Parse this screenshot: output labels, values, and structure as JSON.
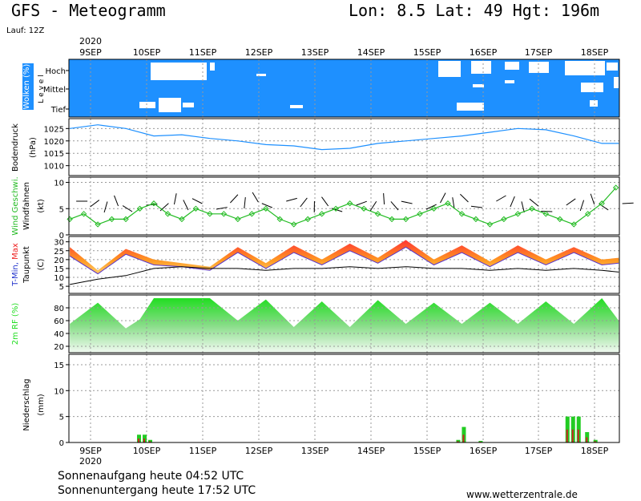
{
  "header": {
    "title": "GFS - Meteogramm",
    "location": "Lon: 8.5  Lat: 49  Hgt: 196m",
    "run": "Lauf: 12Z"
  },
  "footer": {
    "sunrise": "Sonnenaufgang heute 04:52 UTC",
    "sunset": "Sonnenuntergang heute 17:52 UTC",
    "site": "www.wetterzentrale.de"
  },
  "colors": {
    "cloud_blue": "#1e90ff",
    "pressure_line": "#1e90ff",
    "wind_speed": "#22bb22",
    "temp_min_label": "#2233cc",
    "temp_max_label": "#ee2222",
    "rh_fill": "#22dd22",
    "precip_green": "#22cc22",
    "precip_red": "#cc2222"
  },
  "chart_data": [
    {
      "type": "heatmap",
      "name_label": "Wolken (%)",
      "ylabel": "L e v e l",
      "levels": [
        "Hoch",
        "Mittel",
        "Tief"
      ],
      "x_dates": [
        "9SEP",
        "10SEP",
        "11SEP",
        "12SEP",
        "13SEP",
        "14SEP",
        "15SEP",
        "16SEP",
        "17SEP",
        "18SEP"
      ],
      "year": "2020",
      "note": "mostly clear (blue) with scattered clouds (white)"
    },
    {
      "type": "line",
      "ylabel": "Bodendruck (hPa)",
      "yticks": [
        1010,
        1015,
        1020,
        1025
      ],
      "ylim": [
        1006,
        1029
      ],
      "x": [
        0,
        0.5,
        1,
        1.5,
        2,
        2.5,
        3,
        3.5,
        4,
        4.5,
        5,
        5.5,
        6,
        6.5,
        7,
        7.5,
        8,
        8.5,
        9,
        9.5,
        9.8
      ],
      "values": [
        1025,
        1026.5,
        1025,
        1022,
        1022.5,
        1021,
        1020,
        1018.5,
        1018,
        1016.5,
        1017,
        1019,
        1020,
        1021,
        1022,
        1023.5,
        1025,
        1024.5,
        1022,
        1019,
        1019
      ]
    },
    {
      "type": "line",
      "series_labels": [
        "Wind Geschwi.",
        "Windfahnen"
      ],
      "ylabel": "(kt)",
      "yticks": [
        0,
        5,
        10
      ],
      "ylim": [
        0,
        11
      ],
      "x": [
        0,
        0.25,
        0.5,
        0.75,
        1,
        1.25,
        1.5,
        1.75,
        2,
        2.25,
        2.5,
        2.75,
        3,
        3.25,
        3.5,
        3.75,
        4,
        4.25,
        4.5,
        4.75,
        5,
        5.25,
        5.5,
        5.75,
        6,
        6.25,
        6.5,
        6.75,
        7,
        7.25,
        7.5,
        7.75,
        8,
        8.25,
        8.5,
        8.75,
        9,
        9.25,
        9.5,
        9.75
      ],
      "values": [
        3,
        4,
        2,
        3,
        3,
        5,
        6,
        4,
        3,
        5,
        4,
        4,
        3,
        4,
        5,
        3,
        2,
        3,
        4,
        5,
        6,
        5,
        4,
        3,
        3,
        4,
        5,
        6,
        4,
        3,
        2,
        3,
        4,
        5,
        4,
        3,
        2,
        4,
        6,
        9
      ]
    },
    {
      "type": "area",
      "series_labels": [
        "T-Min,",
        "Max"
      ],
      "secondary_label": "Taupunkt",
      "ylabel": "(C)",
      "yticks": [
        5,
        10,
        15,
        20,
        25,
        30
      ],
      "ylim": [
        1,
        33
      ],
      "x": [
        0,
        0.5,
        1,
        1.5,
        2,
        2.5,
        3,
        3.5,
        4,
        4.5,
        5,
        5.5,
        6,
        6.5,
        7,
        7.5,
        8,
        8.5,
        9,
        9.5,
        9.8
      ],
      "tmax": [
        27,
        14,
        26,
        20,
        18,
        16,
        27,
        18,
        28,
        20,
        29,
        21,
        31,
        20,
        28,
        19,
        28,
        20,
        27,
        20,
        21
      ],
      "tmin": [
        22,
        12,
        23,
        17,
        16,
        14,
        24,
        15,
        24,
        17,
        25,
        18,
        27,
        17,
        24,
        16,
        24,
        17,
        24,
        17,
        18
      ],
      "dewpoint": [
        6,
        9,
        11,
        15,
        16,
        15,
        15,
        14,
        15,
        15,
        16,
        15,
        16,
        15,
        15,
        14,
        15,
        14,
        15,
        14,
        13
      ]
    },
    {
      "type": "area",
      "ylabel": "2m RF (%)",
      "yticks": [
        20,
        40,
        60,
        80
      ],
      "ylim": [
        10,
        100
      ],
      "x": [
        0,
        0.5,
        1,
        1.25,
        1.5,
        2,
        2.5,
        3,
        3.5,
        4,
        4.5,
        5,
        5.5,
        6,
        6.5,
        7,
        7.5,
        8,
        8.5,
        9,
        9.5,
        9.8
      ],
      "values": [
        55,
        88,
        48,
        62,
        95,
        95,
        95,
        60,
        93,
        50,
        90,
        50,
        92,
        55,
        88,
        55,
        88,
        55,
        90,
        55,
        95,
        60
      ]
    },
    {
      "type": "bar",
      "ylabel": "Niederschlag (mm)",
      "yticks": [
        0,
        5,
        10,
        15
      ],
      "ylim": [
        0,
        17
      ],
      "x": [
        1.2,
        1.3,
        1.4,
        6.9,
        7.0,
        7.3,
        8.85,
        8.95,
        9.05,
        9.2,
        9.35
      ],
      "values": [
        1.5,
        1.5,
        0.5,
        0.5,
        3,
        0.3,
        5,
        5,
        5,
        2,
        0.5
      ]
    }
  ]
}
